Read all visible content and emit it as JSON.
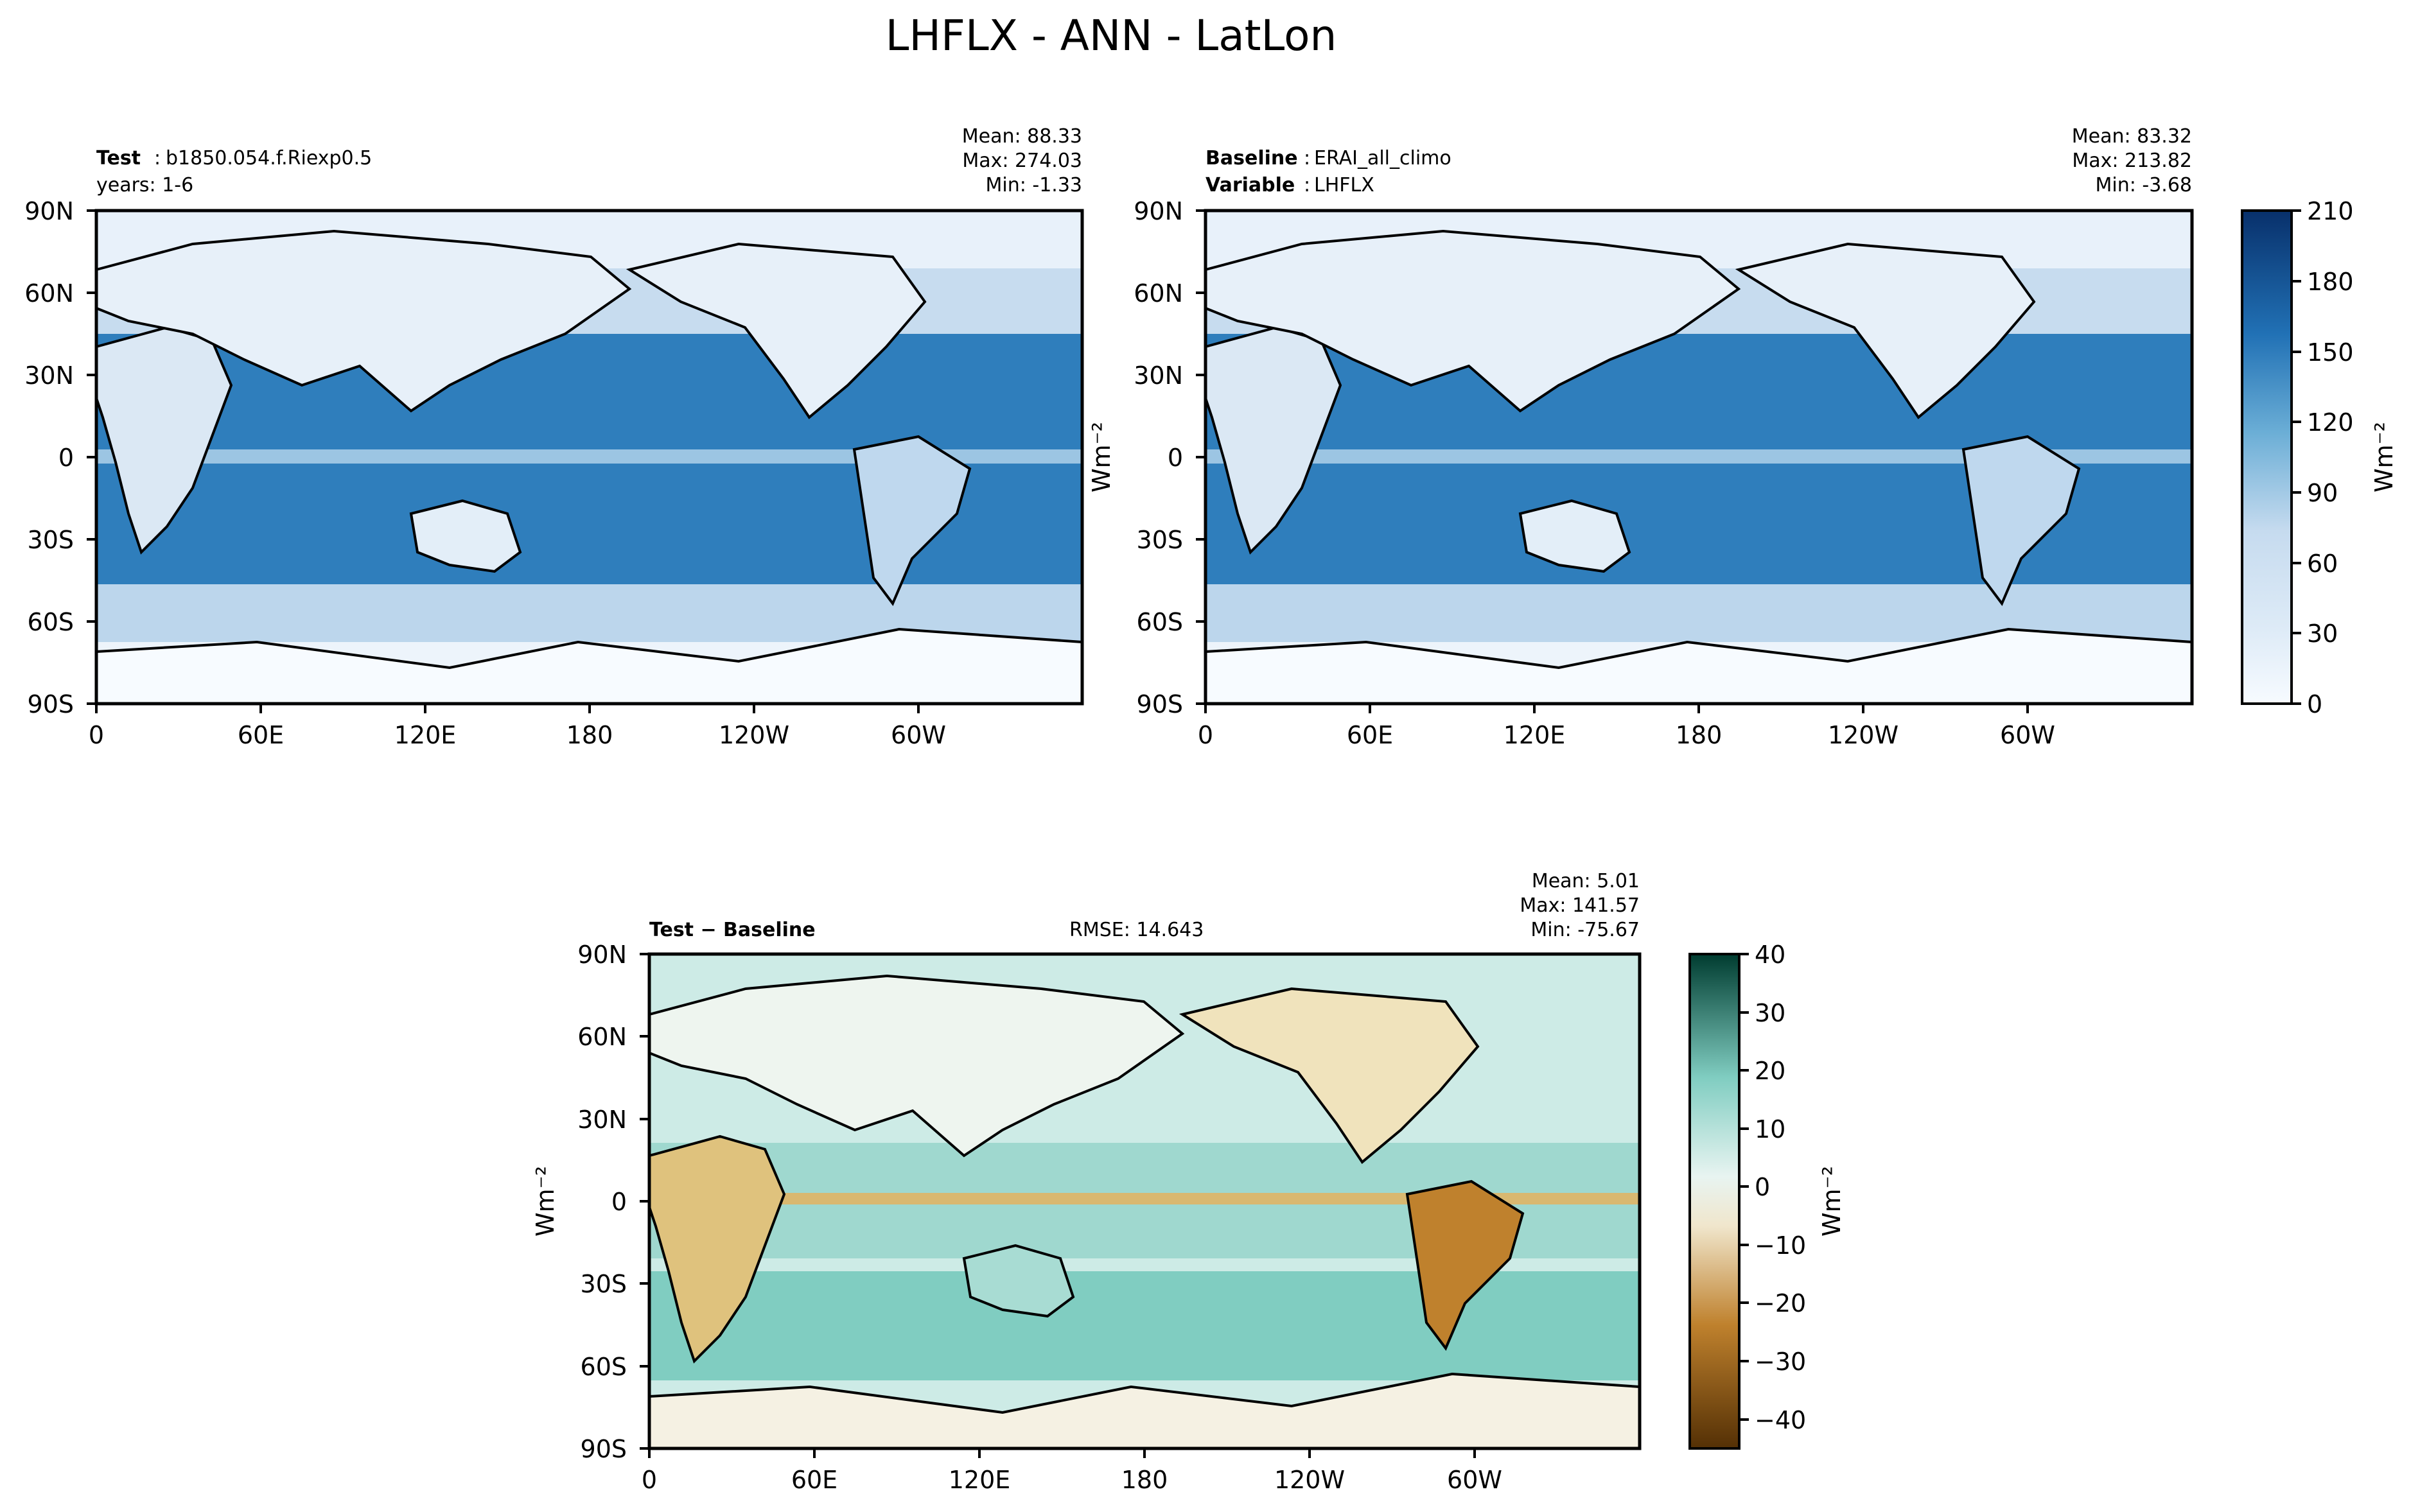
{
  "figure_title": "LHFLX - ANN - LatLon",
  "chart_data": [
    {
      "type": "heatmap",
      "panel": "test",
      "label_bold": "Test",
      "label_value": "b1850.054.f.Riexp0.5",
      "label_line2": "years: 1-6",
      "stats": [
        "Mean: 88.33",
        "Max: 274.03",
        "Min: -1.33"
      ],
      "x_ticks": [
        "0",
        "60E",
        "120E",
        "180",
        "120W",
        "60W"
      ],
      "y_ticks": [
        "90N",
        "60N",
        "30N",
        "0",
        "30S",
        "60S",
        "90S"
      ],
      "xlim": [
        0,
        360
      ],
      "ylim": [
        -90,
        90
      ],
      "units": "Wm⁻²",
      "colormap": "Blues",
      "levels": [
        0,
        210
      ]
    },
    {
      "type": "heatmap",
      "panel": "baseline",
      "label_bold": "Baseline",
      "label_value": "ERAI_all_climo",
      "label2_bold": "Variable",
      "label2_value": "LHFLX",
      "stats": [
        "Mean: 83.32",
        "Max: 213.82",
        "Min: -3.68"
      ],
      "x_ticks": [
        "0",
        "60E",
        "120E",
        "180",
        "120W",
        "60W"
      ],
      "y_ticks": [
        "90N",
        "60N",
        "30N",
        "0",
        "30S",
        "60S",
        "90S"
      ],
      "xlim": [
        0,
        360
      ],
      "ylim": [
        -90,
        90
      ],
      "ylabel": "Wm⁻²",
      "colorbar": {
        "ticks": [
          "210",
          "180",
          "150",
          "120",
          "90",
          "60",
          "30",
          "0"
        ],
        "label": "Wm⁻²",
        "range": [
          0,
          210
        ],
        "colors": [
          "#f7fbff",
          "#e3eef9",
          "#d0e2f2",
          "#b9d6ea",
          "#97c6df",
          "#6aaed6",
          "#4694c7",
          "#2b7bba",
          "#1664ab",
          "#08468b"
        ]
      }
    },
    {
      "type": "heatmap",
      "panel": "difference",
      "label_bold": "Test − Baseline",
      "rmse": "RMSE: 14.643",
      "stats": [
        "Mean:  5.01",
        "Max: 141.57",
        "Min: -75.67"
      ],
      "x_ticks": [
        "0",
        "60E",
        "120E",
        "180",
        "120W",
        "60W"
      ],
      "y_ticks": [
        "90N",
        "60N",
        "30N",
        "0",
        "30S",
        "60S",
        "90S"
      ],
      "xlim": [
        0,
        360
      ],
      "ylim": [
        -90,
        90
      ],
      "ylabel": "Wm⁻²",
      "colorbar": {
        "ticks": [
          "40",
          "30",
          "20",
          "10",
          "0",
          "−10",
          "−20",
          "−30",
          "−40"
        ],
        "label": "Wm⁻²",
        "range": [
          -45,
          40
        ],
        "colors": [
          "#543005",
          "#8c5109",
          "#bf812d",
          "#dfc27d",
          "#f0e3bc",
          "#f5f1e3",
          "#e4f2ef",
          "#c7eae5",
          "#80cdc1",
          "#35978f",
          "#01665e",
          "#003c30"
        ]
      }
    }
  ]
}
